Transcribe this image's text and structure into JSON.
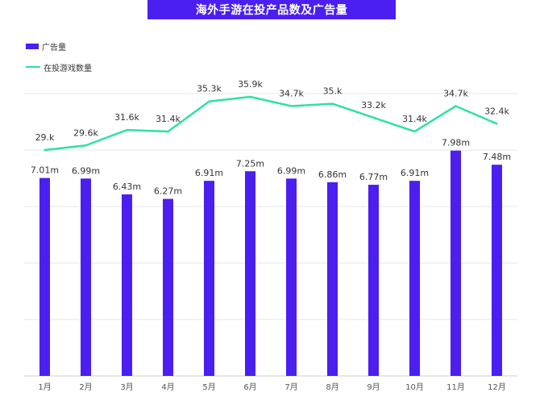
{
  "title": "海外手游在投产品数及广告量",
  "colors": {
    "bar": "#4a1ff0",
    "line": "#2fe0a6",
    "title_bg": "#4a1ff0",
    "grid": "#e4e4e4"
  },
  "legend": [
    {
      "label": "广告量",
      "kind": "bar"
    },
    {
      "label": "在投游戏数量",
      "kind": "line"
    }
  ],
  "chart_data": {
    "type": "bar+line",
    "categories": [
      "1月",
      "2月",
      "3月",
      "4月",
      "5月",
      "6月",
      "7月",
      "8月",
      "9月",
      "10月",
      "11月",
      "12月"
    ],
    "series": [
      {
        "name": "广告量",
        "type": "bar",
        "values": [
          7.01,
          6.99,
          6.43,
          6.27,
          6.91,
          7.25,
          6.99,
          6.86,
          6.77,
          6.91,
          7.98,
          7.48
        ],
        "labels": [
          "7.01m",
          "6.99m",
          "6.43m",
          "6.27m",
          "6.91m",
          "7.25m",
          "6.99m",
          "6.86m",
          "6.77m",
          "6.91m",
          "7.98m",
          "7.48m"
        ],
        "ylim": [
          0,
          8
        ]
      },
      {
        "name": "在投游戏数量",
        "type": "line",
        "values": [
          29.0,
          29.6,
          31.6,
          31.4,
          35.3,
          35.9,
          34.7,
          35.0,
          33.2,
          31.4,
          34.7,
          32.4
        ],
        "labels": [
          "29.k",
          "29.6k",
          "31.6k",
          "31.4k",
          "35.3k",
          "35.9k",
          "34.7k",
          "35.k",
          "33.2k",
          "31.4k",
          "34.7k",
          "32.4k"
        ]
      }
    ],
    "grid": true,
    "legend_position": "top-left"
  }
}
